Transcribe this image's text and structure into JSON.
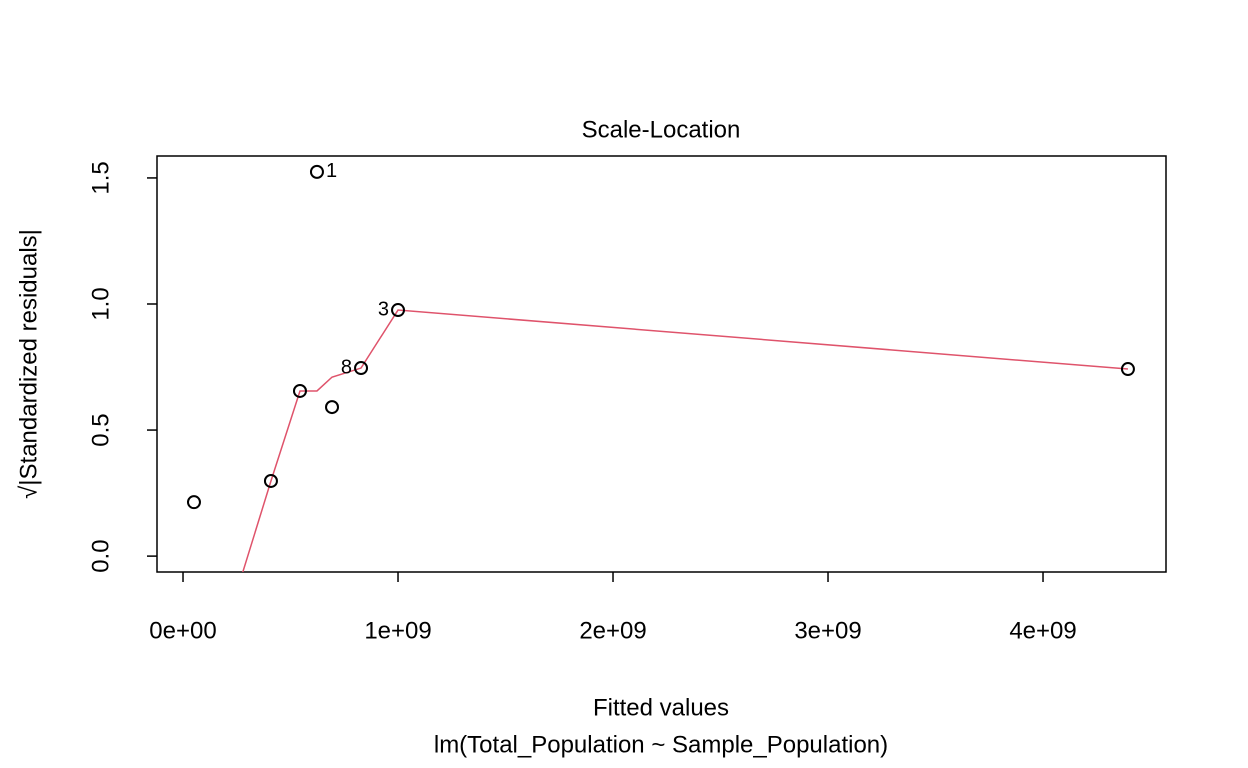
{
  "chart_data": {
    "type": "scatter",
    "title": "Scale-Location",
    "x_label": "Fitted values",
    "subtitle": "lm(Total_Population ~ Sample_Population)",
    "y_label": "√|Standardized residuals|",
    "x": [
      51000000,
      409000000,
      544000000,
      623000000,
      693000000,
      828000000,
      1000000000,
      4395000000
    ],
    "values": [
      0.214,
      0.298,
      0.655,
      1.524,
      0.591,
      0.746,
      0.976,
      0.742
    ],
    "point_labels": [
      null,
      null,
      null,
      "1",
      null,
      "8",
      "3",
      null
    ],
    "color": "#000000",
    "smooth": {
      "color": "#df536b",
      "values": [
        -0.69,
        0.298,
        0.655,
        0.655,
        0.71,
        0.746,
        0.976,
        0.742
      ]
    },
    "xlim": [
      -121000000,
      4572000000
    ],
    "xticks": [
      {
        "value": 0,
        "label": "0e+00"
      },
      {
        "value": 1000000000,
        "label": "1e+09"
      },
      {
        "value": 2000000000,
        "label": "2e+09"
      },
      {
        "value": 3000000000,
        "label": "3e+09"
      },
      {
        "value": 4000000000,
        "label": "4e+09"
      }
    ],
    "ylim": [
      -0.063,
      1.587
    ],
    "yticks": [
      {
        "value": 0,
        "label": "0.0"
      },
      0.5,
      {
        "value": 1,
        "label": "1.0"
      },
      1.5
    ]
  }
}
